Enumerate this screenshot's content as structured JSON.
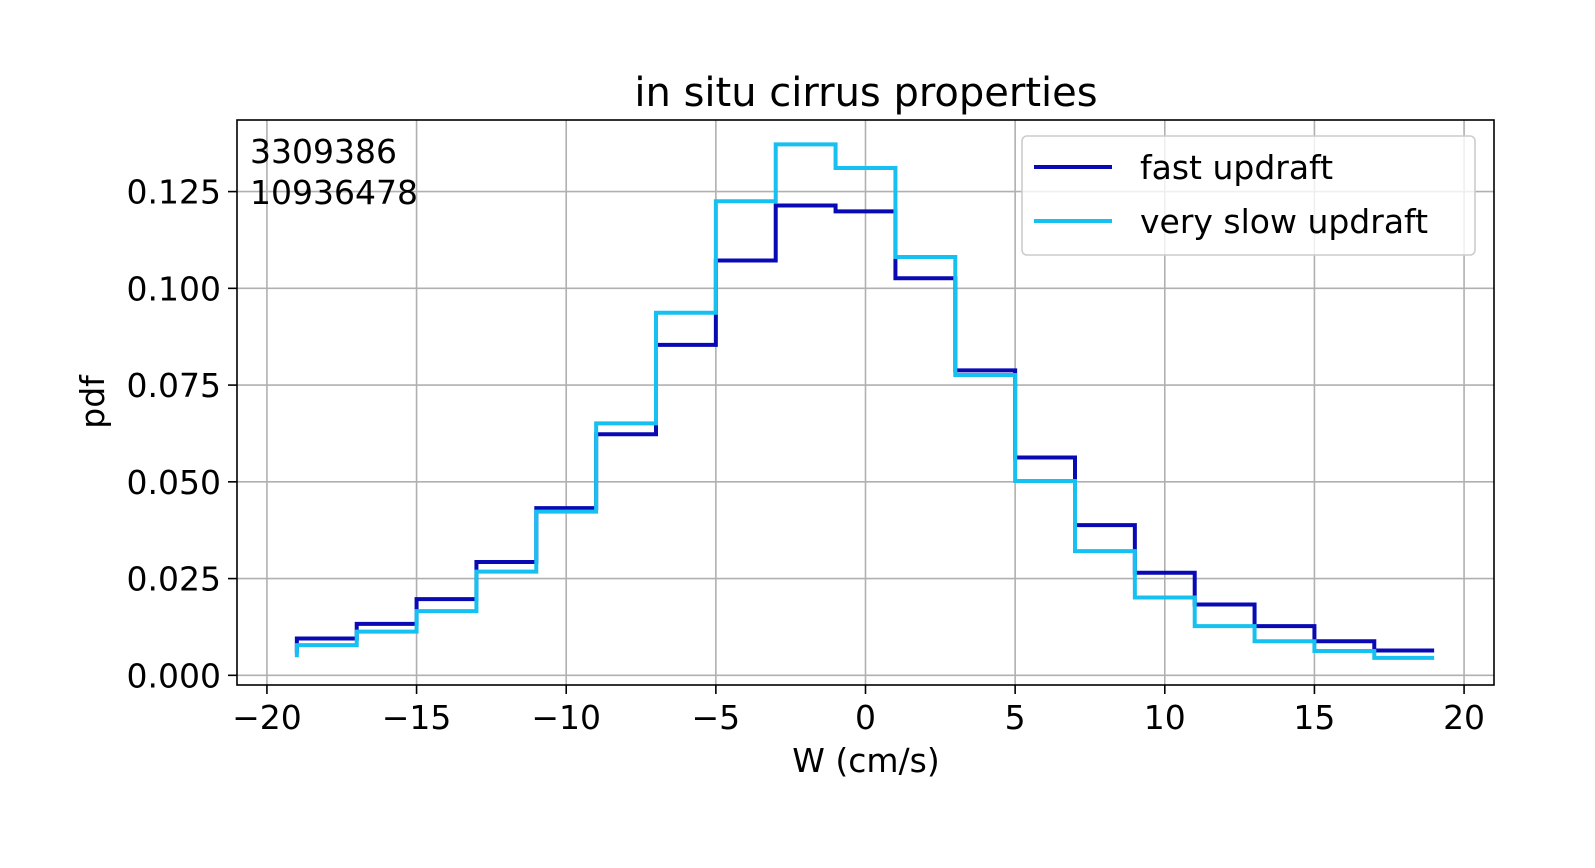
{
  "chart_data": {
    "type": "line",
    "drawstyle": "steps",
    "title": "in situ cirrus properties",
    "xlabel": "W (cm/s)",
    "ylabel": "pdf",
    "xlim": [
      -21,
      21
    ],
    "ylim": [
      -0.0025,
      0.1435
    ],
    "xticks": [
      -20,
      -15,
      -10,
      -5,
      0,
      5,
      10,
      15,
      20
    ],
    "xtick_labels": [
      "−20",
      "−15",
      "−10",
      "−5",
      "0",
      "5",
      "10",
      "15",
      "20"
    ],
    "yticks": [
      0.0,
      0.025,
      0.05,
      0.075,
      0.1,
      0.125
    ],
    "ytick_labels": [
      "0.000",
      "0.025",
      "0.050",
      "0.075",
      "0.100",
      "0.125"
    ],
    "grid": true,
    "legend_position": "top-right",
    "annotations": [
      "3309386",
      "10936478"
    ],
    "bin_edges": [
      -19,
      -17,
      -15,
      -13,
      -11,
      -9,
      -7,
      -5,
      -3,
      -1,
      1,
      3,
      5,
      7,
      9,
      11,
      13,
      15,
      17,
      19
    ],
    "series": [
      {
        "name": "fast updraft",
        "color": "#0a0ab4",
        "values": [
          0.0095,
          0.0133,
          0.0197,
          0.0293,
          0.0432,
          0.0623,
          0.0854,
          0.1072,
          0.1214,
          0.1199,
          0.1026,
          0.0788,
          0.0563,
          0.0388,
          0.0265,
          0.0183,
          0.0127,
          0.0088,
          0.0064
        ]
      },
      {
        "name": "very slow updraft",
        "color": "#16c0f0",
        "values": [
          0.0078,
          0.0113,
          0.0166,
          0.0268,
          0.0423,
          0.0651,
          0.0937,
          0.1225,
          0.1372,
          0.1311,
          0.1081,
          0.0776,
          0.0502,
          0.0321,
          0.0201,
          0.0127,
          0.0088,
          0.0063,
          0.0045
        ]
      }
    ]
  }
}
